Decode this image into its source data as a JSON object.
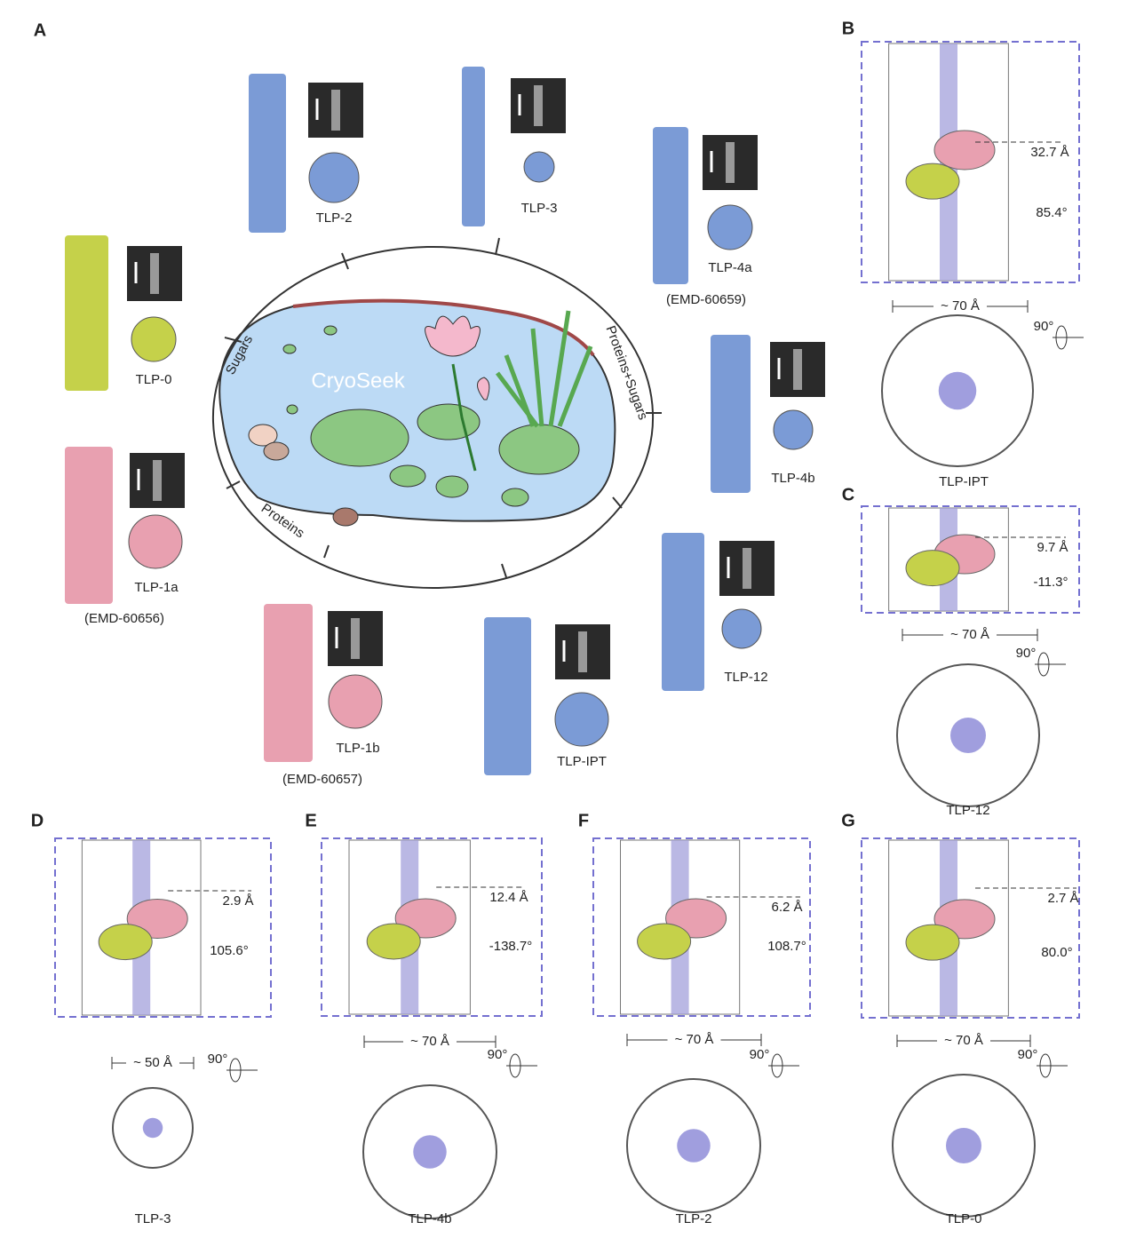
{
  "panel_a": {
    "label": "A",
    "center": {
      "title": "CryoSeek",
      "arcs": [
        "Sugars",
        "Proteins+Sugars",
        "Proteins"
      ]
    },
    "specimens": [
      {
        "name": "TLP-2"
      },
      {
        "name": "TLP-3"
      },
      {
        "name": "TLP-4a",
        "accession": "(EMD-60659)"
      },
      {
        "name": "TLP-0"
      },
      {
        "name": "TLP-4b"
      },
      {
        "name": "TLP-1a",
        "accession": "(EMD-60656)"
      },
      {
        "name": "TLP-12"
      },
      {
        "name": "TLP-1b",
        "accession": "(EMD-60657)"
      },
      {
        "name": "TLP-IPT"
      }
    ]
  },
  "panels": [
    {
      "label": "B",
      "rise": "32.7 Å",
      "twist": "85.4°",
      "width": "~ 70 Å",
      "rotation": "90°",
      "name": "TLP-IPT"
    },
    {
      "label": "C",
      "rise": "9.7 Å",
      "twist": "-11.3°",
      "width": "~ 70 Å",
      "rotation": "90°",
      "name": "TLP-12"
    },
    {
      "label": "D",
      "rise": "2.9 Å",
      "twist": "105.6°",
      "width": "~ 50 Å",
      "rotation": "90°",
      "name": "TLP-3"
    },
    {
      "label": "E",
      "rise": "12.4 Å",
      "twist": "-138.7°",
      "width": "~ 70 Å",
      "rotation": "90°",
      "name": "TLP-4b"
    },
    {
      "label": "F",
      "rise": "6.2 Å",
      "twist": "108.7°",
      "width": "~ 70 Å",
      "rotation": "90°",
      "name": "TLP-2"
    },
    {
      "label": "G",
      "rise": "2.7 Å",
      "twist": "80.0°",
      "width": "~ 70 Å",
      "rotation": "90°",
      "name": "TLP-0"
    }
  ]
}
